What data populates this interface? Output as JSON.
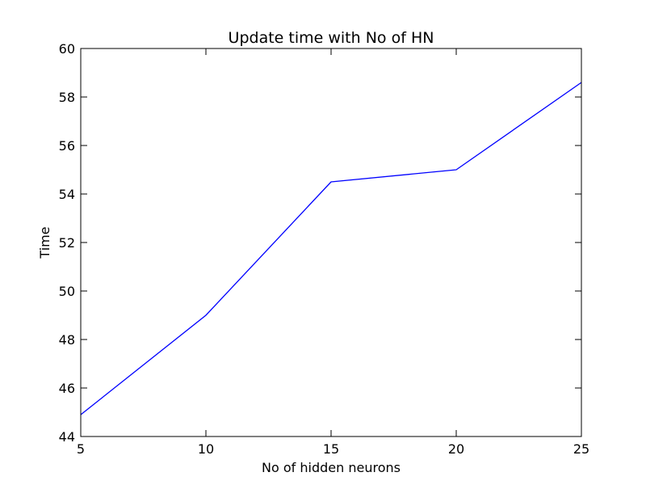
{
  "chart_data": {
    "type": "line",
    "title": "Update time with No of HN",
    "xlabel": "No of hidden neurons",
    "ylabel": "Time",
    "xlim": [
      5,
      25
    ],
    "ylim": [
      44,
      60
    ],
    "x_ticks": [
      5,
      10,
      15,
      20,
      25
    ],
    "y_ticks": [
      44,
      46,
      48,
      50,
      52,
      54,
      56,
      58,
      60
    ],
    "x_tick_labels": [
      "5",
      "10",
      "15",
      "20",
      "25"
    ],
    "y_tick_labels": [
      "44",
      "46",
      "48",
      "50",
      "52",
      "54",
      "56",
      "58",
      "60"
    ],
    "grid": false,
    "legend": "none",
    "series": [
      {
        "color": "#0000ff",
        "x": [
          5,
          10,
          15,
          20,
          25
        ],
        "values": [
          44.9,
          49.0,
          54.5,
          55.0,
          58.6
        ]
      }
    ]
  }
}
